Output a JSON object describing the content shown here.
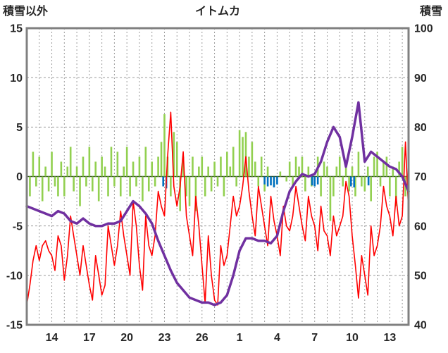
{
  "chart_data": {
    "type": "combo",
    "title": "イトムカ",
    "left_axis": {
      "label": "積雪以外",
      "min": -15,
      "max": 15,
      "ticks": [
        15,
        10,
        5,
        0,
        -5,
        -10,
        -15
      ]
    },
    "right_axis": {
      "label": "積雪",
      "min": 40,
      "max": 100,
      "ticks": [
        100,
        90,
        80,
        70,
        60,
        50,
        40
      ]
    },
    "x_axis": {
      "start_day": 0,
      "end_day": 30.5,
      "day_gridlines": true,
      "tick_positions": [
        2,
        5,
        8,
        11,
        14,
        17,
        20,
        23,
        26,
        29
      ],
      "tick_labels": [
        "14",
        "17",
        "20",
        "23",
        "26",
        "1",
        "4",
        "7",
        "10",
        "13"
      ]
    },
    "grid": {
      "color": "#9a9a9a",
      "zero_line_color": "#375623",
      "frame_color": "#808080"
    },
    "series": [
      {
        "name": "green-bars",
        "type": "bar",
        "axis": "left",
        "color": "#92d050",
        "bar_width": 2.6,
        "start": 0,
        "step": 0.25,
        "values": [
          1.5,
          -2,
          2.5,
          -1,
          2,
          -2.5,
          1,
          -1.5,
          2.5,
          -1,
          -2,
          1.5,
          -2,
          1,
          3,
          -1.5,
          1,
          -3,
          2,
          -1,
          3,
          -1.5,
          1.5,
          -2.5,
          2,
          1,
          -2,
          3,
          -1,
          2.5,
          -2,
          1,
          3,
          -2,
          1.5,
          -1,
          2,
          -2.5,
          3,
          -1.5,
          1.5,
          -1,
          2,
          3.5,
          6.3,
          2,
          -2,
          4.5,
          3.5,
          -3.5,
          2,
          -2,
          -3,
          2,
          -3.5,
          1,
          2,
          -2,
          1,
          -1.5,
          1.5,
          -1,
          2,
          -2,
          2.5,
          1,
          3,
          -1,
          4.7,
          4,
          4.5,
          2,
          3.5,
          1.5,
          -1,
          2,
          -1.5,
          1,
          0,
          -1,
          0,
          0.5,
          0,
          -0.5,
          1.5,
          -1,
          2,
          1,
          2,
          -1.5,
          1,
          -1,
          -1,
          2,
          -2,
          1.5,
          1,
          -4.5,
          -2,
          1,
          2,
          -1,
          1.5,
          -1.5,
          1,
          -2,
          2.5,
          -1,
          -1.5,
          1,
          -2.5,
          2,
          2.5,
          -1,
          1.5,
          2,
          -2,
          1,
          -3,
          1.5,
          3,
          -2,
          1
        ]
      },
      {
        "name": "blue-bars",
        "type": "bar",
        "axis": "left",
        "color": "#0070c0",
        "bar_width": 2.6,
        "points": [
          [
            10.9,
            -1.0
          ],
          [
            11.15,
            -1.2
          ],
          [
            19.0,
            -0.8
          ],
          [
            19.25,
            -1.0
          ],
          [
            19.5,
            -0.9
          ],
          [
            19.75,
            -1.1
          ],
          [
            20.0,
            -0.8
          ],
          [
            22.8,
            -0.9
          ],
          [
            23.0,
            -1.0
          ],
          [
            23.25,
            -0.8
          ],
          [
            25.9,
            -1.0
          ],
          [
            26.15,
            -1.1
          ],
          [
            27.3,
            -0.9
          ]
        ]
      },
      {
        "name": "temperature-line",
        "type": "line",
        "axis": "left",
        "color": "#ff0000",
        "width": 1.6,
        "start": 0,
        "step": 0.25,
        "values": [
          -13,
          -11,
          -8.5,
          -7,
          -8.5,
          -7,
          -6.5,
          -7.5,
          -8,
          -9.5,
          -6,
          -7,
          -10.5,
          -8,
          -4,
          -6,
          -8,
          -10,
          -7,
          -9,
          -11,
          -12.5,
          -8,
          -10,
          -12,
          -11,
          -5,
          -7,
          -9,
          -7,
          -3.5,
          -6,
          -8,
          -10,
          -2.5,
          -5,
          -9,
          -11.5,
          -4,
          -7,
          -8,
          -6,
          -1.5,
          -3,
          -4,
          2,
          6.5,
          -1,
          -3,
          -1,
          2.5,
          -4,
          -6,
          -8,
          -2,
          -5,
          -9,
          -12.8,
          -6,
          -10,
          -12.5,
          -13,
          -7,
          -9,
          -8,
          -5,
          -2,
          -4,
          -3,
          -1,
          2,
          -1.5,
          -4,
          -6,
          -1,
          -3,
          -5,
          -7,
          -2,
          -4.5,
          -6,
          -8,
          -3,
          -5,
          -5.5,
          -4,
          -1,
          -3,
          -5,
          -6.5,
          -2,
          -4,
          -5,
          -7.5,
          -3,
          -5.5,
          -6,
          -8,
          -4,
          -6,
          -5,
          -4,
          -0.5,
          -2,
          -6,
          -9,
          -12.3,
          -8,
          -10,
          -12,
          -5,
          -8,
          -7,
          -5,
          -1,
          -3,
          -4,
          -6,
          -2,
          -5,
          -4,
          3.5,
          -3.5
        ]
      },
      {
        "name": "snow-depth-line",
        "type": "line",
        "axis": "right",
        "color": "#7030a0",
        "width": 3.5,
        "start": 0,
        "step": 0.5,
        "values": [
          64,
          63.5,
          63,
          62.5,
          62,
          63,
          62.5,
          61,
          60.5,
          61.5,
          60.5,
          60,
          60,
          60.5,
          60.5,
          61,
          63,
          65,
          64,
          62.5,
          60.5,
          57,
          54,
          51,
          48.5,
          47,
          45.5,
          45,
          44.5,
          44.5,
          44,
          44.5,
          46,
          50,
          55,
          57.5,
          57.5,
          57,
          57,
          56.5,
          58,
          63,
          67,
          69,
          70.5,
          70,
          70.5,
          73,
          77,
          80,
          78,
          72,
          78,
          85,
          73,
          75,
          74,
          73,
          72,
          71.5,
          70,
          67
        ]
      }
    ]
  }
}
